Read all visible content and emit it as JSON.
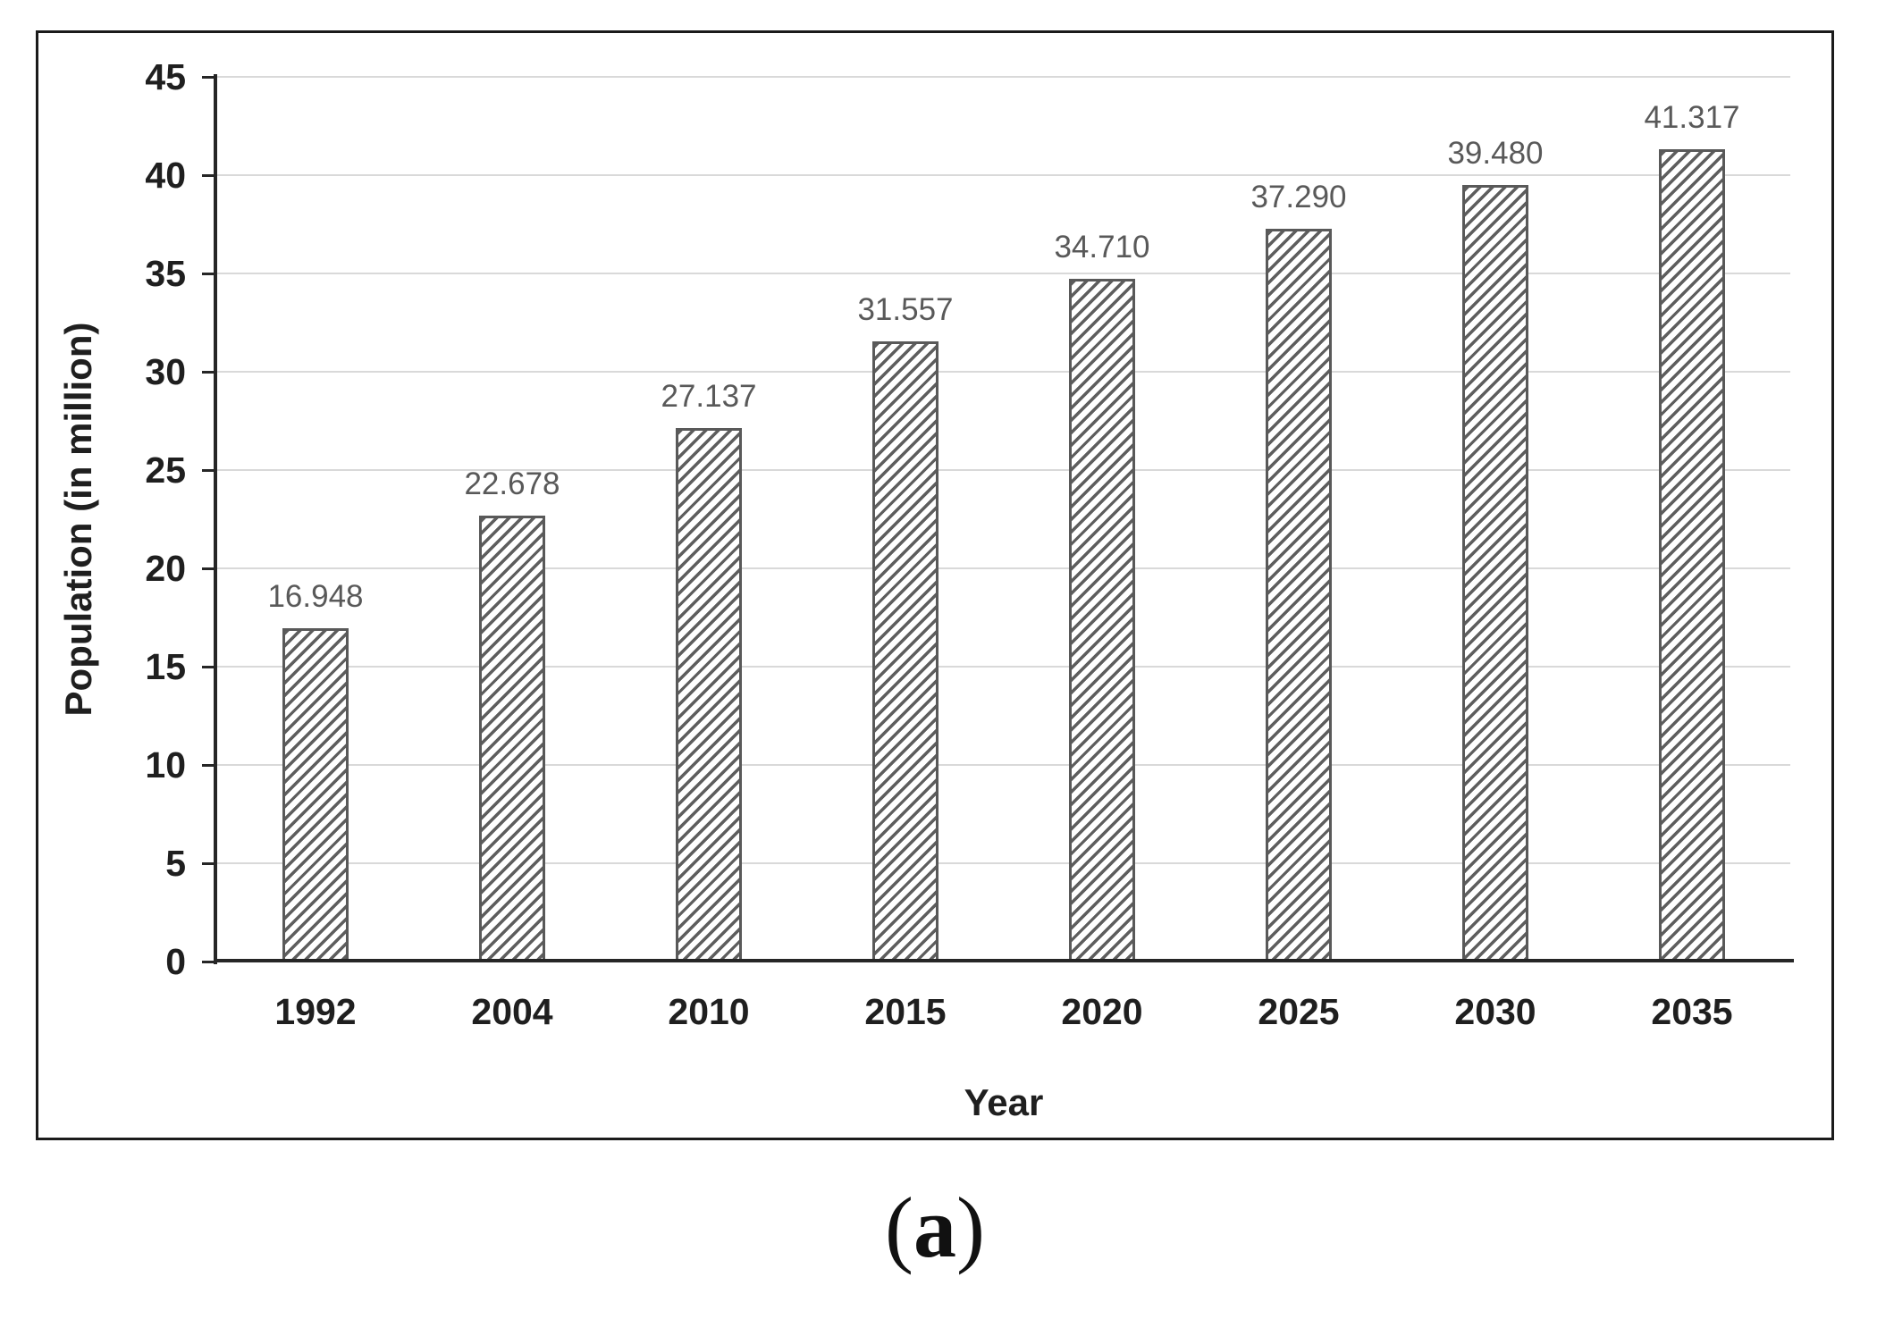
{
  "figure": {
    "caption_open": "(",
    "caption_letter": "a",
    "caption_close": ")"
  },
  "chart_data": {
    "type": "bar",
    "title": "",
    "xlabel": "Year",
    "ylabel": "Population (in million)",
    "categories": [
      "1992",
      "2004",
      "2010",
      "2015",
      "2020",
      "2025",
      "2030",
      "2035"
    ],
    "values": [
      16.948,
      22.678,
      27.137,
      31.557,
      34.71,
      37.29,
      39.48,
      41.317
    ],
    "value_labels": [
      "16.948",
      "22.678",
      "27.137",
      "31.557",
      "34.710",
      "37.290",
      "39.480",
      "41.317"
    ],
    "ylim": [
      0,
      45
    ],
    "yticks": [
      0,
      5,
      10,
      15,
      20,
      25,
      30,
      35,
      40,
      45
    ],
    "grid": "horizontal",
    "legend": "none",
    "bar_style": "diagonal-hatch",
    "colors": {
      "bar_hatch": "#5e5e5e",
      "bar_border": "#595959",
      "value_label": "#595959",
      "axis": "#262626",
      "gridline": "#d9d9d9",
      "text": "#1f1f1f",
      "frame_border": "#1b1b1b"
    }
  }
}
